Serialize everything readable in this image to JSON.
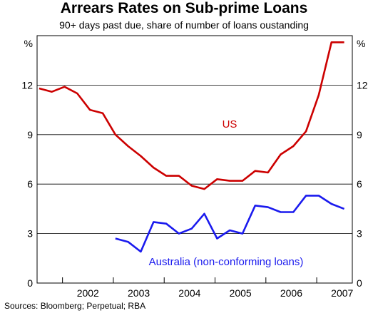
{
  "title": "Arrears Rates on Sub-prime Loans",
  "subtitle": "90+ days past due, share of number of loans oustanding",
  "source": "Sources: Bloomberg; Perpetual; RBA",
  "chart_data": {
    "type": "line",
    "title": "Arrears Rates on Sub-prime Loans",
    "subtitle": "90+ days past due, share of number of loans oustanding",
    "y_unit_left": "%",
    "y_unit_right": "%",
    "ylim": [
      0,
      15
    ],
    "yticks": [
      0,
      3,
      6,
      9,
      12
    ],
    "xlim": [
      2001.5,
      2007.7
    ],
    "x_year_labels": [
      "2002",
      "2003",
      "2004",
      "2005",
      "2006",
      "2007"
    ],
    "grid": true,
    "series": [
      {
        "name": "US",
        "color": "#cc0000",
        "x": [
          2001.54,
          2001.79,
          2002.04,
          2002.29,
          2002.54,
          2002.79,
          2003.04,
          2003.29,
          2003.54,
          2003.79,
          2004.04,
          2004.29,
          2004.54,
          2004.79,
          2005.04,
          2005.29,
          2005.54,
          2005.79,
          2006.04,
          2006.29,
          2006.54,
          2006.79,
          2007.04,
          2007.29,
          2007.54
        ],
        "values": [
          11.8,
          11.6,
          11.9,
          11.5,
          10.5,
          10.3,
          9.0,
          8.3,
          7.7,
          7.0,
          6.5,
          6.5,
          5.9,
          5.7,
          6.3,
          6.2,
          6.2,
          6.8,
          6.7,
          7.8,
          8.3,
          9.2,
          11.4,
          14.6,
          14.6
        ]
      },
      {
        "name": "Australia (non-conforming loans)",
        "color": "#1a1aee",
        "x": [
          2003.04,
          2003.29,
          2003.54,
          2003.79,
          2004.04,
          2004.29,
          2004.54,
          2004.79,
          2005.04,
          2005.29,
          2005.54,
          2005.79,
          2006.04,
          2006.29,
          2006.54,
          2006.79,
          2007.04,
          2007.29,
          2007.54
        ],
        "values": [
          2.7,
          2.5,
          1.9,
          3.7,
          3.6,
          3.0,
          3.3,
          4.2,
          2.7,
          3.2,
          3.0,
          4.7,
          4.6,
          4.3,
          4.3,
          5.3,
          5.3,
          4.8,
          4.5
        ]
      }
    ]
  }
}
